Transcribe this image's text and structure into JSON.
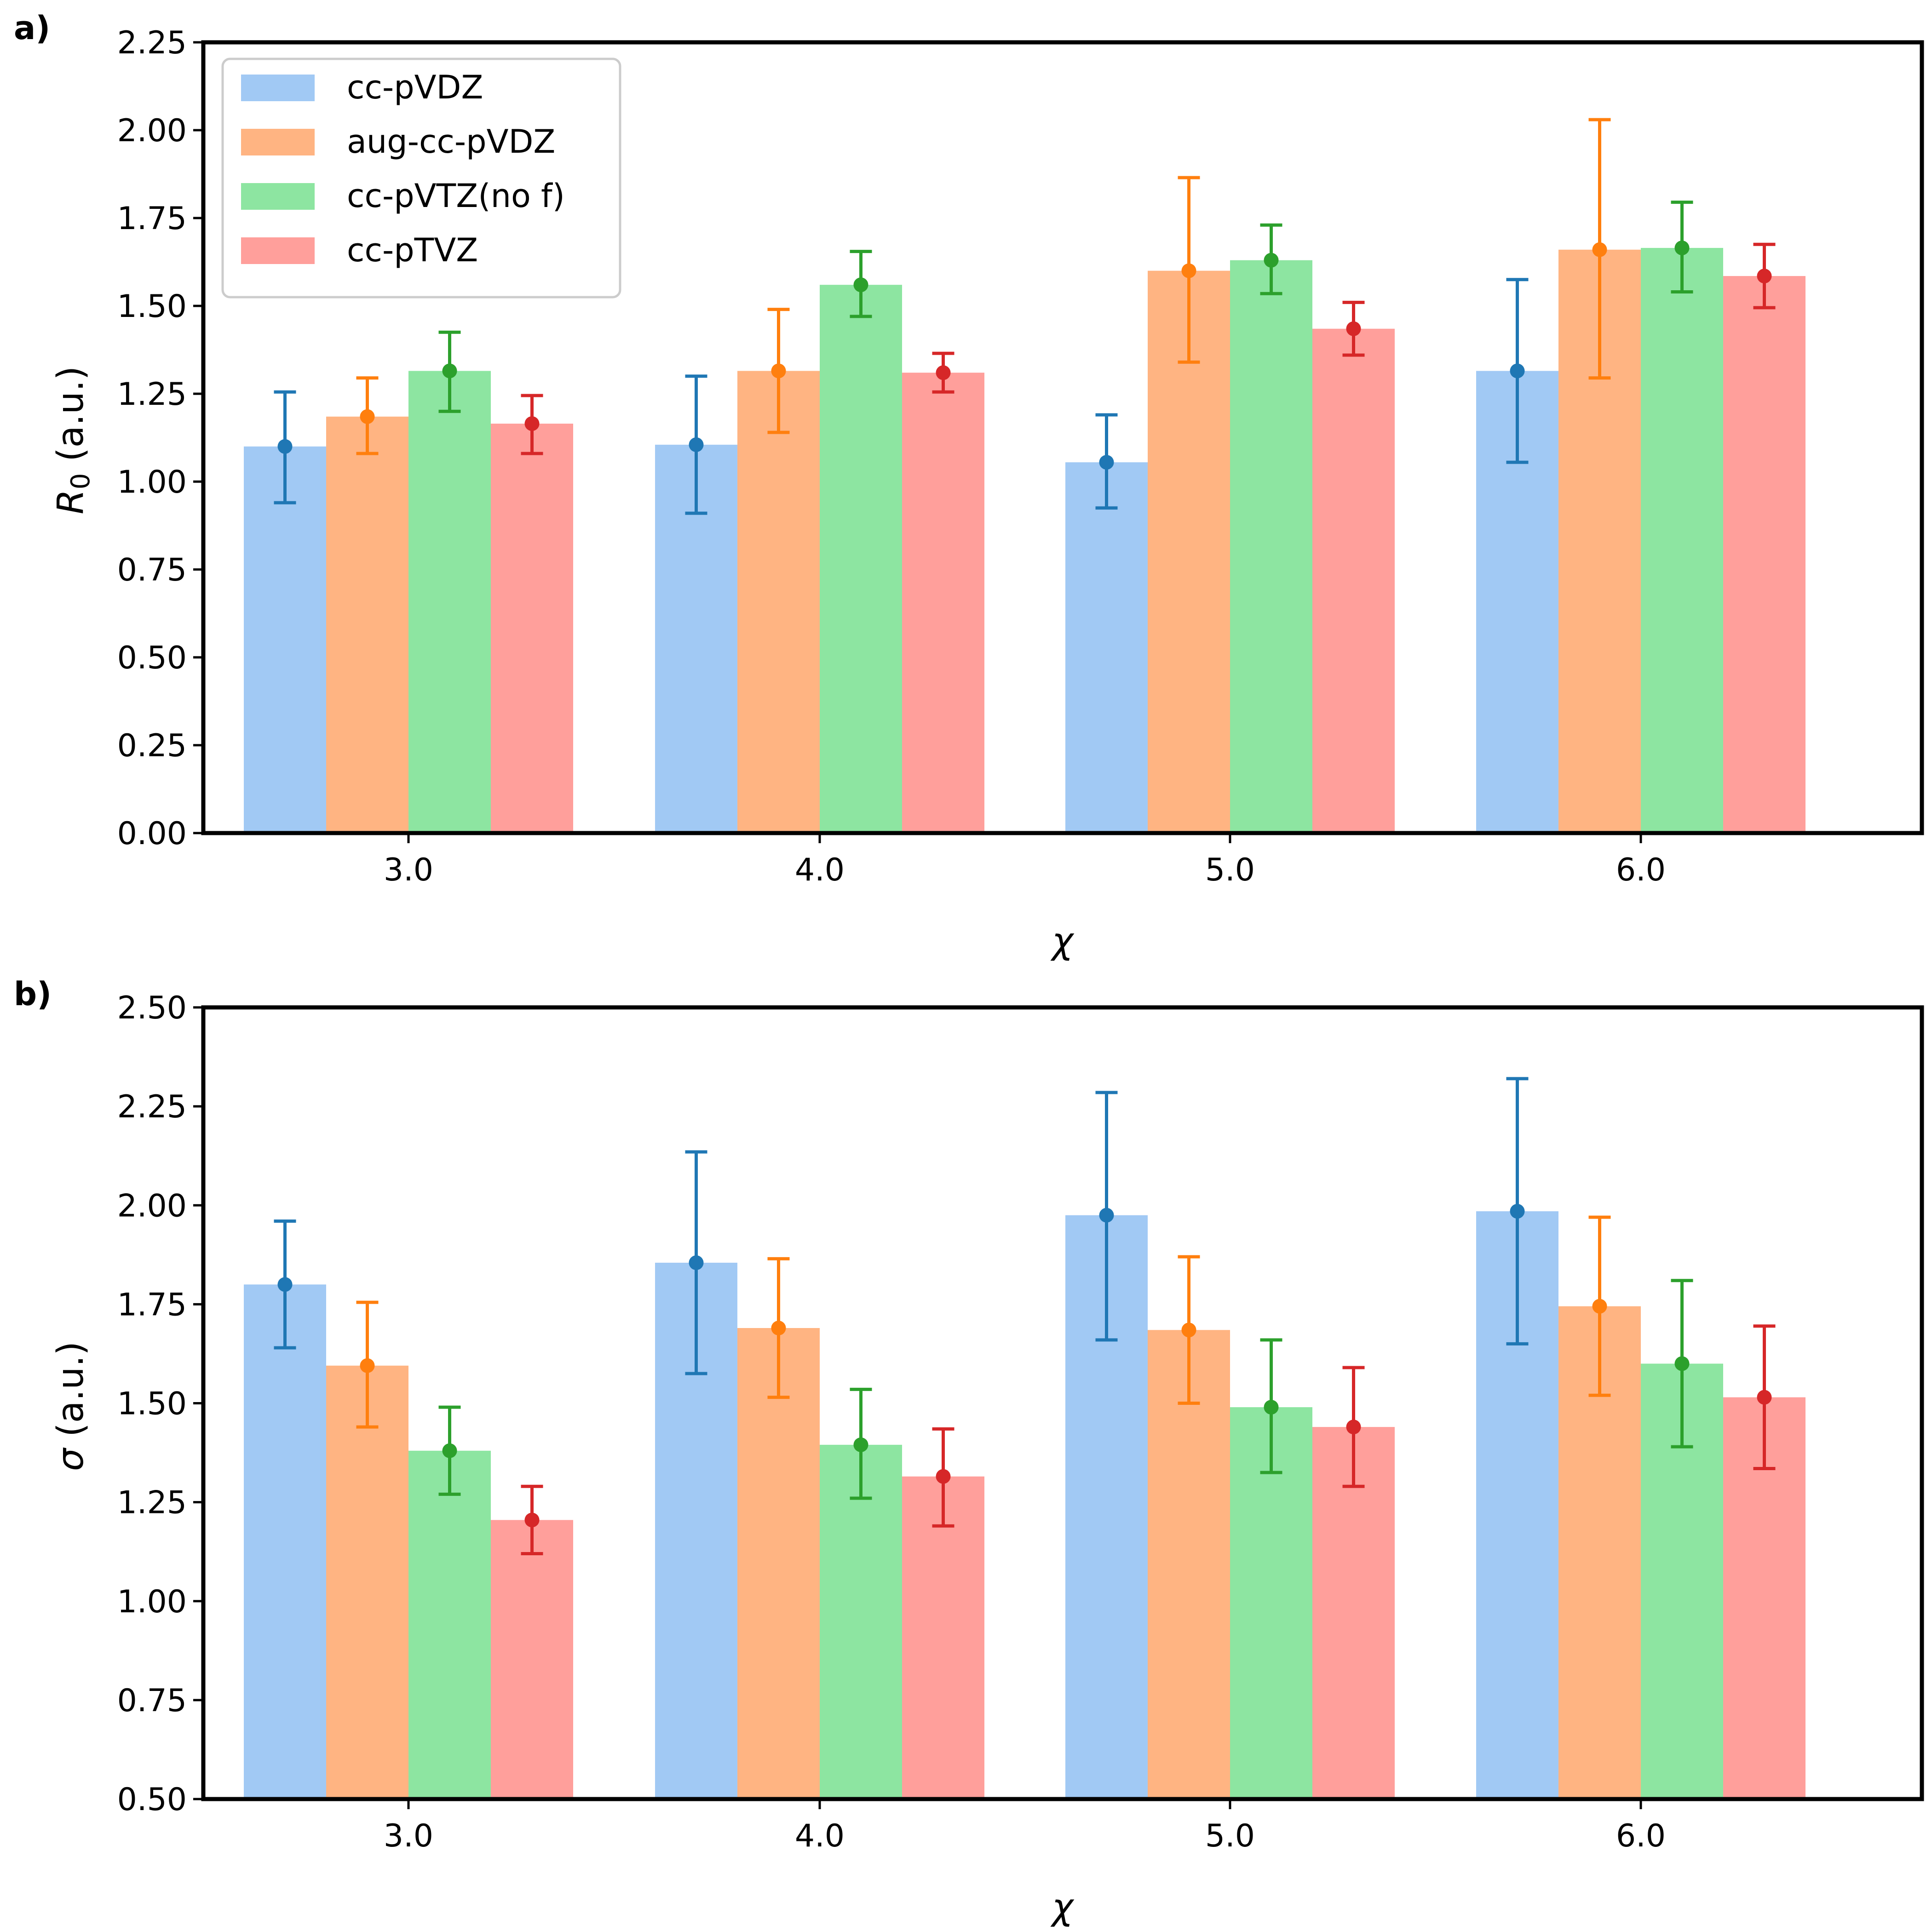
{
  "chart_data": [
    {
      "panel_label": "a)",
      "type": "bar",
      "categories": [
        "3.0",
        "4.0",
        "5.0",
        "6.0"
      ],
      "xlabel": "χ",
      "ylabel_symbol": "R",
      "ylabel_subscript": "0",
      "ylabel_units": " (a.u.)",
      "ylim": [
        0,
        2.25
      ],
      "yticks": [
        "0.00",
        "0.25",
        "0.50",
        "0.75",
        "1.00",
        "1.25",
        "1.50",
        "1.75",
        "2.00",
        "2.25"
      ],
      "legend_position": "top-left",
      "series": [
        {
          "name": "cc-pVDZ",
          "bar": [
            1.1,
            1.105,
            1.055,
            1.315
          ],
          "point": [
            1.1,
            1.105,
            1.055,
            1.315
          ],
          "err_low": [
            0.94,
            0.91,
            0.925,
            1.055
          ],
          "err_high": [
            1.255,
            1.3,
            1.19,
            1.575
          ]
        },
        {
          "name": "aug-cc-pVDZ",
          "bar": [
            1.185,
            1.315,
            1.6,
            1.66
          ],
          "point": [
            1.185,
            1.315,
            1.6,
            1.66
          ],
          "err_low": [
            1.08,
            1.14,
            1.34,
            1.295
          ],
          "err_high": [
            1.295,
            1.49,
            1.865,
            2.03
          ]
        },
        {
          "name": "cc-pVTZ(no f)",
          "bar": [
            1.315,
            1.56,
            1.63,
            1.665
          ],
          "point": [
            1.315,
            1.56,
            1.63,
            1.665
          ],
          "err_low": [
            1.2,
            1.47,
            1.535,
            1.54
          ],
          "err_high": [
            1.425,
            1.655,
            1.73,
            1.795
          ]
        },
        {
          "name": "cc-pTVZ",
          "bar": [
            1.165,
            1.31,
            1.435,
            1.585
          ],
          "point": [
            1.165,
            1.31,
            1.435,
            1.585
          ],
          "err_low": [
            1.08,
            1.255,
            1.36,
            1.495
          ],
          "err_high": [
            1.245,
            1.365,
            1.51,
            1.675
          ]
        }
      ]
    },
    {
      "panel_label": "b)",
      "type": "bar",
      "categories": [
        "3.0",
        "4.0",
        "5.0",
        "6.0"
      ],
      "xlabel": "χ",
      "ylabel_symbol": "σ",
      "ylabel_subscript": "",
      "ylabel_units": " (a.u.)",
      "ylim": [
        0.5,
        2.5
      ],
      "yticks": [
        "0.50",
        "0.75",
        "1.00",
        "1.25",
        "1.50",
        "1.75",
        "2.00",
        "2.25",
        "2.50"
      ],
      "series": [
        {
          "name": "cc-pVDZ",
          "bar": [
            1.8,
            1.855,
            1.975,
            1.985
          ],
          "point": [
            1.8,
            1.855,
            1.975,
            1.985
          ],
          "err_low": [
            1.64,
            1.575,
            1.66,
            1.65
          ],
          "err_high": [
            1.96,
            2.135,
            2.285,
            2.32
          ]
        },
        {
          "name": "aug-cc-pVDZ",
          "bar": [
            1.595,
            1.69,
            1.685,
            1.745
          ],
          "point": [
            1.595,
            1.69,
            1.685,
            1.745
          ],
          "err_low": [
            1.44,
            1.515,
            1.5,
            1.52
          ],
          "err_high": [
            1.755,
            1.865,
            1.87,
            1.97
          ]
        },
        {
          "name": "cc-pVTZ(no f)",
          "bar": [
            1.38,
            1.395,
            1.49,
            1.6
          ],
          "point": [
            1.38,
            1.395,
            1.49,
            1.6
          ],
          "err_low": [
            1.27,
            1.26,
            1.325,
            1.39
          ],
          "err_high": [
            1.49,
            1.535,
            1.66,
            1.81
          ]
        },
        {
          "name": "cc-pTVZ",
          "bar": [
            1.205,
            1.315,
            1.44,
            1.515
          ],
          "point": [
            1.205,
            1.315,
            1.44,
            1.515
          ],
          "err_low": [
            1.12,
            1.19,
            1.29,
            1.335
          ],
          "err_high": [
            1.29,
            1.435,
            1.59,
            1.695
          ]
        }
      ]
    }
  ],
  "colors": {
    "bar_fill": [
      "#a1c9f4",
      "#ffb482",
      "#8de5a1",
      "#ff9f9b"
    ],
    "marker": [
      "#1f77b4",
      "#ff7f0e",
      "#2ca02c",
      "#d62728"
    ]
  }
}
